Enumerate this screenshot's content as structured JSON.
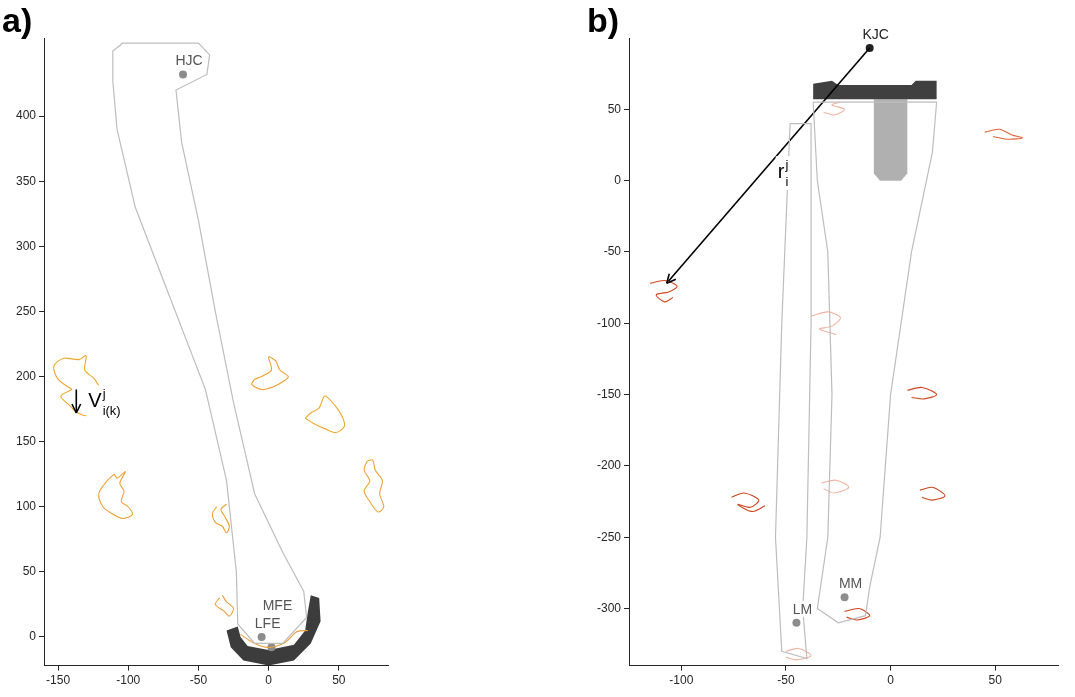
{
  "chart_data": [
    {
      "type": "scatter",
      "title": "a)",
      "grid": false,
      "xlim": [
        -160,
        85
      ],
      "ylim": [
        -22,
        460
      ],
      "xticks": [
        -150,
        -100,
        -50,
        0,
        50
      ],
      "yticks": [
        0,
        50,
        100,
        150,
        200,
        250,
        300,
        350,
        400
      ],
      "outlines": [
        {
          "color": "#bdbdbd",
          "points": [
            [
              -111,
              427
            ],
            [
              -111,
              450
            ],
            [
              -104,
              456
            ],
            [
              -50,
              456
            ],
            [
              -42,
              447
            ],
            [
              -44,
              432
            ],
            [
              -66,
              420
            ],
            [
              -62,
              380
            ],
            [
              -50,
              320
            ],
            [
              -38,
              250
            ],
            [
              -25,
              180
            ],
            [
              -10,
              110
            ],
            [
              10,
              65
            ],
            [
              25,
              35
            ],
            [
              27,
              15
            ],
            [
              10,
              -5
            ],
            [
              -10,
              -5
            ],
            [
              -22,
              10
            ],
            [
              -23,
              50
            ],
            [
              -30,
              120
            ],
            [
              -45,
              190
            ],
            [
              -70,
              260
            ],
            [
              -95,
              330
            ],
            [
              -108,
              390
            ],
            [
              -111,
              427
            ]
          ]
        }
      ],
      "implants": [
        {
          "color": "#3c3c3c",
          "points": [
            [
              -30,
              5
            ],
            [
              -27,
              -8
            ],
            [
              -18,
              -18
            ],
            [
              0,
              -22
            ],
            [
              18,
              -18
            ],
            [
              30,
              -5
            ],
            [
              37,
              12
            ],
            [
              36,
              30
            ],
            [
              30,
              32
            ],
            [
              28,
              20
            ],
            [
              26,
              5
            ],
            [
              18,
              -6
            ],
            [
              0,
              -10
            ],
            [
              -15,
              -7
            ],
            [
              -20,
              0
            ],
            [
              -22,
              8
            ]
          ]
        }
      ],
      "trajectories": [
        {
          "color": "#f2a72e",
          "points": [
            [
              -140,
              190
            ],
            [
              -150,
              198
            ],
            [
              -153,
              208
            ],
            [
              -146,
              214
            ],
            [
              -135,
              213
            ],
            [
              -130,
              216
            ],
            [
              -131,
              205
            ],
            [
              -124,
              198
            ],
            [
              -118,
              185
            ],
            [
              -120,
              175
            ],
            [
              -128,
              170
            ],
            [
              -136,
              172
            ],
            [
              -142,
              178
            ],
            [
              -148,
              185
            ],
            [
              -140,
              190
            ]
          ]
        },
        {
          "color": "#eea23a",
          "points": [
            [
              -110,
              125
            ],
            [
              -115,
              120
            ],
            [
              -121,
              110
            ],
            [
              -118,
              100
            ],
            [
              -112,
              95
            ],
            [
              -104,
              91
            ],
            [
              -97,
              94
            ],
            [
              -100,
              100
            ],
            [
              -105,
              104
            ],
            [
              -103,
              112
            ],
            [
              -106,
              118
            ],
            [
              -102,
              127
            ],
            [
              -108,
              122
            ],
            [
              -110,
              125
            ]
          ]
        },
        {
          "color": "#f0a030",
          "points": [
            [
              -37,
              100
            ],
            [
              -40,
              95
            ],
            [
              -38,
              88
            ],
            [
              -33,
              85
            ],
            [
              -30,
              80
            ],
            [
              -28,
              85
            ],
            [
              -31,
              92
            ],
            [
              -34,
              98
            ],
            [
              -30,
              102
            ]
          ]
        },
        {
          "color": "#e8a040",
          "points": [
            [
              -35,
              30
            ],
            [
              -38,
              25
            ],
            [
              -32,
              20
            ],
            [
              -28,
              16
            ],
            [
              -25,
              22
            ],
            [
              -30,
              27
            ],
            [
              -33,
              32
            ]
          ]
        },
        {
          "color": "#f0a030",
          "points": [
            [
              -10,
              198
            ],
            [
              -12,
              194
            ],
            [
              -5,
              190
            ],
            [
              3,
              192
            ],
            [
              10,
              196
            ],
            [
              14,
              200
            ],
            [
              8,
              205
            ],
            [
              5,
              212
            ],
            [
              0,
              215
            ],
            [
              2,
              205
            ],
            [
              -5,
              200
            ],
            [
              -10,
              198
            ]
          ]
        },
        {
          "color": "#f2a72e",
          "points": [
            [
              26,
              168
            ],
            [
              32,
              164
            ],
            [
              40,
              160
            ],
            [
              48,
              157
            ],
            [
              54,
              162
            ],
            [
              52,
              170
            ],
            [
              47,
              178
            ],
            [
              40,
              185
            ],
            [
              36,
              176
            ],
            [
              30,
              172
            ],
            [
              26,
              168
            ]
          ]
        },
        {
          "color": "#eea23a",
          "points": [
            [
              70,
              135
            ],
            [
              68,
              128
            ],
            [
              72,
              120
            ],
            [
              68,
              112
            ],
            [
              72,
              104
            ],
            [
              78,
              96
            ],
            [
              82,
              100
            ],
            [
              79,
              110
            ],
            [
              81,
              120
            ],
            [
              76,
              128
            ],
            [
              74,
              136
            ],
            [
              70,
              135
            ]
          ]
        },
        {
          "color": "#e8a040",
          "points": [
            [
              -20,
              2
            ],
            [
              -10,
              -5
            ],
            [
              0,
              -8
            ],
            [
              12,
              -4
            ],
            [
              20,
              4
            ],
            [
              28,
              5
            ]
          ]
        }
      ],
      "landmarks": [
        {
          "label": "HJC",
          "x": -61,
          "y": 432,
          "color": "#8c8c8c"
        },
        {
          "label": "LFE",
          "x": -5,
          "y": 0,
          "color": "#8c8c8c"
        },
        {
          "label": "MFE",
          "x": 2,
          "y": -8,
          "color": "#8c8c8c"
        }
      ],
      "vectors": [
        {
          "from": [
            -137,
            190
          ],
          "to": [
            -137,
            172
          ],
          "color": "#000000",
          "label": {
            "base": "V",
            "sup": "j",
            "sub": "i(k)"
          }
        }
      ]
    },
    {
      "type": "scatter",
      "title": "b)",
      "grid": false,
      "xlim": [
        -125,
        80
      ],
      "ylim": [
        -340,
        100
      ],
      "xticks": [
        -100,
        -50,
        0,
        50
      ],
      "yticks": [
        -300,
        -250,
        -200,
        -150,
        -100,
        -50,
        0,
        50
      ],
      "outlines": [
        {
          "color": "#bdbdbd",
          "points": [
            [
              -37,
              55
            ],
            [
              22,
              55
            ],
            [
              20,
              20
            ],
            [
              10,
              -50
            ],
            [
              0,
              -150
            ],
            [
              -5,
              -250
            ],
            [
              -10,
              -285
            ],
            [
              -12,
              -305
            ],
            [
              -25,
              -310
            ],
            [
              -35,
              -300
            ],
            [
              -30,
              -250
            ],
            [
              -28,
              -150
            ],
            [
              -30,
              -50
            ],
            [
              -35,
              0
            ],
            [
              -37,
              55
            ]
          ]
        },
        {
          "color": "#bdbdbd",
          "points": [
            [
              -48,
              40
            ],
            [
              -52,
              -100
            ],
            [
              -55,
              -250
            ],
            [
              -52,
              -330
            ],
            [
              -40,
              -335
            ],
            [
              -42,
              -300
            ],
            [
              -40,
              -250
            ],
            [
              -38,
              -100
            ],
            [
              -38,
              40
            ],
            [
              -48,
              40
            ]
          ]
        }
      ],
      "implants": [
        {
          "color": "#b0b0b0",
          "points": [
            [
              -8,
              57
            ],
            [
              -8,
              5
            ],
            [
              -5,
              0
            ],
            [
              5,
              0
            ],
            [
              8,
              5
            ],
            [
              8,
              57
            ]
          ]
        },
        {
          "color": "#404040",
          "points": [
            [
              -37,
              57
            ],
            [
              -37,
              68
            ],
            [
              -28,
              70
            ],
            [
              -25,
              67
            ],
            [
              10,
              67
            ],
            [
              12,
              70
            ],
            [
              22,
              70
            ],
            [
              22,
              57
            ]
          ]
        }
      ],
      "trajectories": [
        {
          "color": "#d2451e",
          "points": [
            [
              -115,
              -72
            ],
            [
              -108,
              -70
            ],
            [
              -102,
              -74
            ],
            [
              -106,
              -78
            ],
            [
              -112,
              -80
            ],
            [
              -108,
              -85
            ],
            [
              -104,
              -82
            ]
          ]
        },
        {
          "color": "#c8441c",
          "points": [
            [
              -76,
              -222
            ],
            [
              -70,
              -219
            ],
            [
              -63,
              -224
            ],
            [
              -67,
              -229
            ],
            [
              -73,
              -227
            ],
            [
              -66,
              -232
            ],
            [
              -60,
              -228
            ]
          ]
        },
        {
          "color": "#e0643c",
          "points": [
            [
              45,
              34
            ],
            [
              52,
              36
            ],
            [
              58,
              32
            ],
            [
              63,
              30
            ],
            [
              56,
              29
            ],
            [
              49,
              31
            ]
          ]
        },
        {
          "color": "#f0b4a0",
          "points": [
            [
              -38,
              -95
            ],
            [
              -30,
              -92
            ],
            [
              -24,
              -96
            ],
            [
              -28,
              -102
            ],
            [
              -34,
              -104
            ],
            [
              -26,
              -108
            ]
          ]
        },
        {
          "color": "#d2451e",
          "points": [
            [
              8,
              -147
            ],
            [
              15,
              -145
            ],
            [
              22,
              -150
            ],
            [
              16,
              -153
            ],
            [
              10,
              -152
            ]
          ]
        },
        {
          "color": "#f0b4a0",
          "points": [
            [
              -33,
              -212
            ],
            [
              -26,
              -210
            ],
            [
              -20,
              -215
            ],
            [
              -27,
              -219
            ],
            [
              -32,
              -216
            ]
          ]
        },
        {
          "color": "#c8441c",
          "points": [
            [
              14,
              -217
            ],
            [
              20,
              -215
            ],
            [
              26,
              -221
            ],
            [
              20,
              -224
            ],
            [
              15,
              -222
            ]
          ]
        },
        {
          "color": "#d2451e",
          "points": [
            [
              -22,
              -302
            ],
            [
              -15,
              -300
            ],
            [
              -10,
              -305
            ],
            [
              -16,
              -308
            ],
            [
              -21,
              -306
            ]
          ]
        },
        {
          "color": "#f0b4a0",
          "points": [
            [
              -50,
              -330
            ],
            [
              -44,
              -328
            ],
            [
              -38,
              -333
            ],
            [
              -45,
              -336
            ],
            [
              -50,
              -334
            ]
          ]
        },
        {
          "color": "#f0b4a0",
          "points": [
            [
              -32,
              48
            ],
            [
              -27,
              46
            ],
            [
              -22,
              50
            ],
            [
              -28,
              53
            ],
            [
              -24,
              55
            ]
          ]
        }
      ],
      "landmarks": [
        {
          "label": "KJC",
          "x": -10,
          "y": 93,
          "color": "#222222"
        },
        {
          "label": "LM",
          "x": -45,
          "y": -310,
          "color": "#8c8c8c"
        },
        {
          "label": "MM",
          "x": -22,
          "y": -292,
          "color": "#8c8c8c"
        }
      ],
      "vectors": [
        {
          "from": [
            -10,
            93
          ],
          "to": [
            -107,
            -72
          ],
          "color": "#000000",
          "label": {
            "base": "r",
            "sup": "j",
            "sub": "i"
          }
        }
      ]
    }
  ]
}
